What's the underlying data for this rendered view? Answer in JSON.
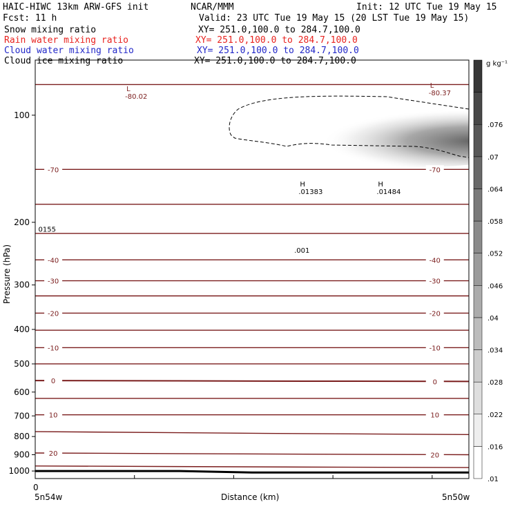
{
  "header": {
    "model": "HAIC-HIWC 13km ARW-GFS init",
    "org": "NCAR/MMM",
    "init": "Init: 12 UTC Tue 19 May 15",
    "fcst": "Fcst:    11 h",
    "valid": "Valid: 23 UTC Tue 19 May 15 (20 LST Tue 19 May 15)"
  },
  "fields": [
    {
      "name": "Snow mixing ratio",
      "xy": "XY= 251.0,100.0 to 284.7,100.0",
      "color": "#000000"
    },
    {
      "name": "Rain water mixing ratio",
      "xy": "XY= 251.0,100.0 to 284.7,100.0",
      "color": "#e8231f"
    },
    {
      "name": "Cloud water mixing ratio",
      "xy": "XY= 251.0,100.0 to 284.7,100.0",
      "color": "#2228c8"
    },
    {
      "name": "Cloud ice mixing ratio",
      "xy": "XY= 251.0,100.0 to 284.7,100.0",
      "color": "#000000"
    }
  ],
  "colors": {
    "temperature_contour": "#7a1c1c",
    "cloud_ice_contour": "#000000",
    "terrain": "#000000"
  },
  "colorbar": {
    "unit": "g kg⁻¹",
    "levels": [
      ".01",
      ".016",
      ".022",
      ".028",
      ".034",
      ".04",
      ".046",
      ".052",
      ".058",
      ".064",
      ".07",
      ".076"
    ]
  },
  "chart_data": {
    "type": "contour",
    "xlabel": "Distance (km)",
    "ylabel": "Pressure (hPa)",
    "y_scale": "log",
    "ylim": [
      1050,
      70
    ],
    "yticks": [
      100,
      200,
      300,
      400,
      500,
      600,
      700,
      800,
      900,
      1000
    ],
    "x_origin_label": "0",
    "x_left_label": "5n54w",
    "x_right_label": "5n50w",
    "temperature_contours": [
      {
        "value": -80,
        "p_left": 82,
        "p_right": 82,
        "label": ""
      },
      {
        "value": -70,
        "p_left": 142,
        "p_right": 142,
        "label": "-70"
      },
      {
        "value": -65,
        "p_left": 178,
        "p_right": 178,
        "label": ""
      },
      {
        "value": -55,
        "p_left": 215,
        "p_right": 215,
        "label": ""
      },
      {
        "value": -40,
        "p_left": 255,
        "p_right": 255,
        "label": "-40"
      },
      {
        "value": -30,
        "p_left": 292,
        "p_right": 292,
        "label": "-30"
      },
      {
        "value": -25,
        "p_left": 322,
        "p_right": 322,
        "label": ""
      },
      {
        "value": -20,
        "p_left": 360,
        "p_right": 360,
        "label": "-20"
      },
      {
        "value": -15,
        "p_left": 402,
        "p_right": 402,
        "label": ""
      },
      {
        "value": -10,
        "p_left": 450,
        "p_right": 450,
        "label": "-10"
      },
      {
        "value": -5,
        "p_left": 500,
        "p_right": 500,
        "label": ""
      },
      {
        "value": 0,
        "p_left": 557,
        "p_right": 560,
        "label": "0"
      },
      {
        "value": 5,
        "p_left": 625,
        "p_right": 625,
        "label": ""
      },
      {
        "value": 10,
        "p_left": 695,
        "p_right": 695,
        "label": "10"
      },
      {
        "value": 15,
        "p_left": 775,
        "p_right": 790,
        "label": ""
      },
      {
        "value": 20,
        "p_left": 890,
        "p_right": 900,
        "label": "20"
      },
      {
        "value": 25,
        "p_left": 968,
        "p_right": 978,
        "label": ""
      }
    ],
    "annotations": [
      {
        "text": "L",
        "value": "-80.02",
        "x_frac": 0.22,
        "p": 88
      },
      {
        "text": "L",
        "value": "-80.37",
        "x_frac": 0.92,
        "p": 86
      },
      {
        "text": "H",
        "value": ".01383",
        "x_frac": 0.62,
        "p": 163
      },
      {
        "text": "H",
        "value": ".01484",
        "x_frac": 0.8,
        "p": 163
      },
      {
        "text": "",
        "value": ".001",
        "x_frac": 0.61,
        "p": 238
      },
      {
        "text": "",
        "value": "0155",
        "x_frac": 0.02,
        "p": 208
      }
    ],
    "terrain_p": [
      1000,
      1000,
      1000,
      1010,
      1010,
      1010,
      1010
    ]
  }
}
